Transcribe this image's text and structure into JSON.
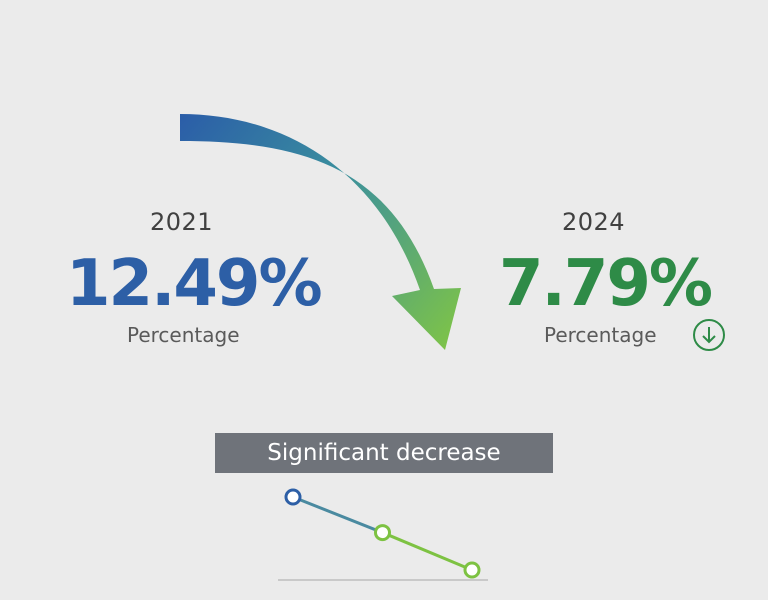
{
  "left": {
    "year": "2021",
    "value": "12.49%",
    "unit": "Percentage"
  },
  "right": {
    "year": "2024",
    "value": "7.79%",
    "unit": "Percentage"
  },
  "badge": {
    "label": "Significant decrease"
  },
  "icons": {
    "trend_arrow": "curved-down-arrow-icon",
    "status": "arrow-down-circle-icon"
  },
  "colors": {
    "blue": "#2d5fa6",
    "green": "#2e8b47",
    "light_green": "#7dc242",
    "bar": "#6f737a"
  },
  "chart_data": {
    "type": "line",
    "title": "",
    "xlabel": "",
    "ylabel": "",
    "x": [
      "2021",
      "",
      "2024"
    ],
    "series": [
      {
        "values": [
          12.49,
          10.2,
          7.79
        ]
      }
    ],
    "ylim": [
      7.79,
      12.49
    ],
    "grid": false,
    "legend": "none"
  }
}
